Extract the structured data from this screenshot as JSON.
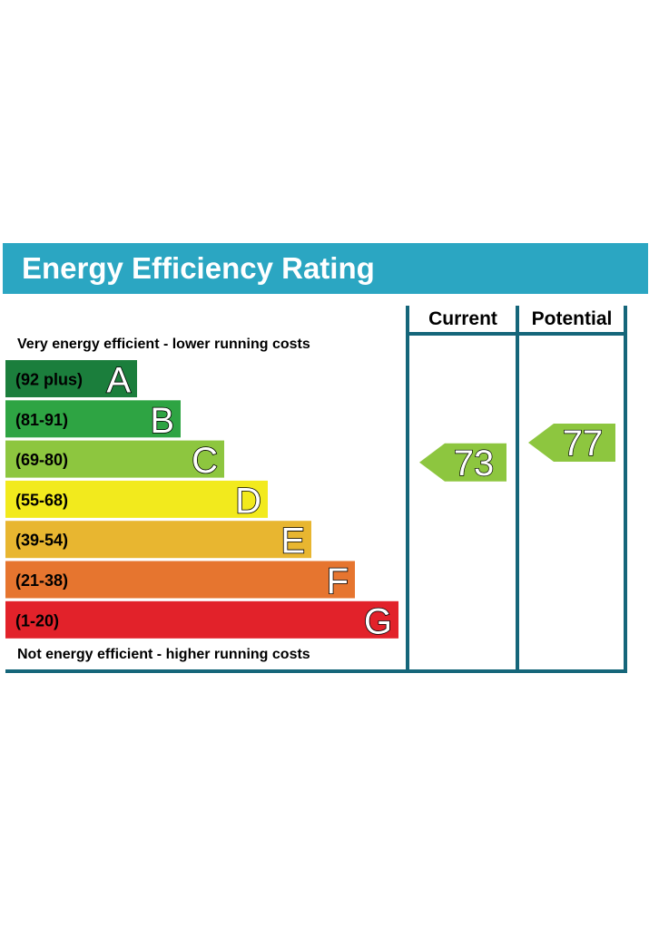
{
  "chart_data": {
    "type": "bar",
    "title": "Energy Efficiency Rating",
    "top_caption": "Very energy efficient - lower running costs",
    "bottom_caption": "Not energy efficient - higher running costs",
    "columns": [
      "Current",
      "Potential"
    ],
    "bands": [
      {
        "letter": "A",
        "range": "(92 plus)",
        "color": "#1b7e3c"
      },
      {
        "letter": "B",
        "range": "(81-91)",
        "color": "#2ea443"
      },
      {
        "letter": "C",
        "range": "(69-80)",
        "color": "#8dc63f"
      },
      {
        "letter": "D",
        "range": "(55-68)",
        "color": "#f2ea1d"
      },
      {
        "letter": "E",
        "range": "(39-54)",
        "color": "#e8b630"
      },
      {
        "letter": "F",
        "range": "(21-38)",
        "color": "#e6752f"
      },
      {
        "letter": "G",
        "range": "(1-20)",
        "color": "#e2222a"
      }
    ],
    "ratings": [
      {
        "name": "Current",
        "value": "73",
        "band": "C",
        "color": "#8dc63f"
      },
      {
        "name": "Potential",
        "value": "77",
        "band": "C",
        "color": "#8dc63f"
      }
    ],
    "colors": {
      "header": "#2ba6c2",
      "frame": "#15667a"
    }
  }
}
